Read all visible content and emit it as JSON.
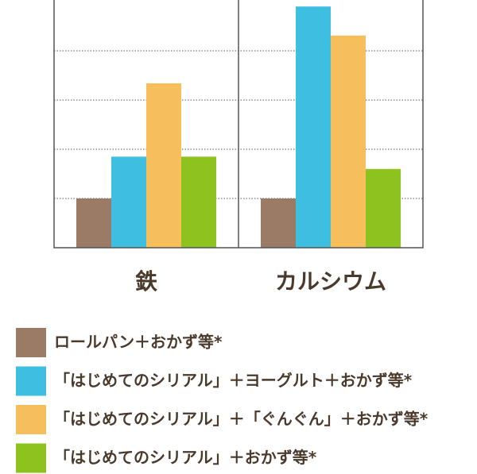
{
  "chart_data": {
    "type": "bar",
    "categories": [
      "鉄",
      "カルシウム"
    ],
    "series": [
      {
        "name": "ロールパン＋おかず等*",
        "color": "#9c7b66",
        "values": [
          1.0,
          1.0
        ]
      },
      {
        "name": "「はじめてのシリアル」＋ヨーグルト＋おかず等*",
        "color": "#3ebee1",
        "values": [
          1.85,
          4.9
        ]
      },
      {
        "name": "「はじめてのシリアル」＋「ぐんぐん」＋おかず等*",
        "color": "#f6bf5c",
        "values": [
          3.34,
          4.31
        ]
      },
      {
        "name": "「はじめてのシリアル」＋おかず等*",
        "color": "#8dc21f",
        "values": [
          1.85,
          1.6
        ]
      }
    ],
    "ylim": [
      0,
      5
    ],
    "yticks": [
      1,
      2,
      3,
      4
    ],
    "grid": true
  }
}
